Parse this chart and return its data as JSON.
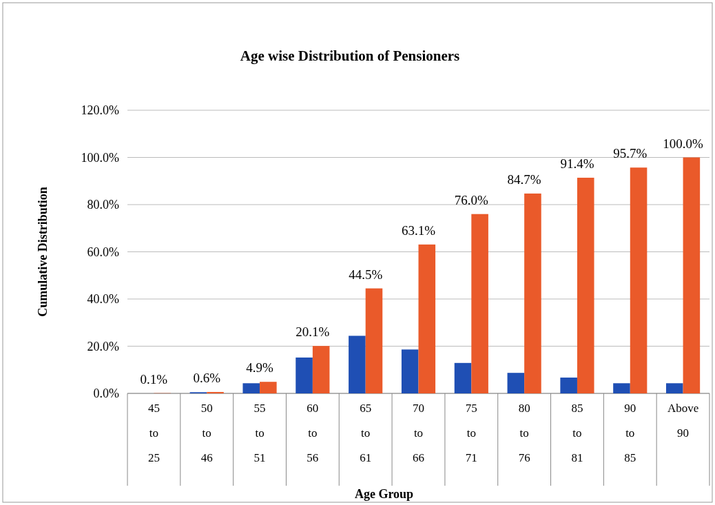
{
  "chart_data": {
    "type": "bar",
    "title": "Age wise Distribution of Pensioners",
    "xlabel": "Age Group",
    "ylabel": "Cumulative Distribution",
    "categories": [
      "45 to 25",
      "50 to 46",
      "55 to 51",
      "60 to 56",
      "65 to 61",
      "70 to 66",
      "75 to 71",
      "80 to 76",
      "85 to 81",
      "90 to 85",
      "Above 90"
    ],
    "series": [
      {
        "color": "#1f4fb4",
        "values": [
          null,
          0.5,
          4.3,
          15.2,
          24.4,
          18.6,
          12.9,
          8.7,
          6.7,
          4.3,
          4.3
        ]
      },
      {
        "color": "#ea5a2a",
        "values": [
          0.1,
          0.6,
          4.9,
          20.1,
          44.5,
          63.1,
          76.0,
          84.7,
          91.4,
          95.7,
          100.0
        ],
        "value_labels": [
          "0.1%",
          "0.6%",
          "4.9%",
          "20.1%",
          "44.5%",
          "63.1%",
          "76.0%",
          "84.7%",
          "91.4%",
          "95.7%",
          "100.0%"
        ]
      }
    ],
    "ylim": [
      0,
      120
    ],
    "yticks": [
      {
        "value": 0,
        "label": "0.0%"
      },
      {
        "value": 20,
        "label": "20.0%"
      },
      {
        "value": 40,
        "label": "40.0%"
      },
      {
        "value": 60,
        "label": "60.0%"
      },
      {
        "value": 80,
        "label": "80.0%"
      },
      {
        "value": 100,
        "label": "100.0%"
      },
      {
        "value": 120,
        "label": "120.0%"
      }
    ],
    "grid": "y"
  }
}
